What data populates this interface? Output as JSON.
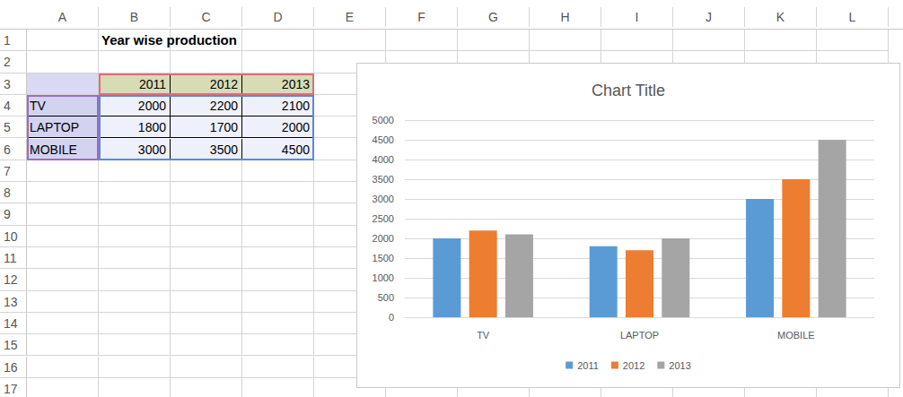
{
  "sheet": {
    "title": "Year wise production",
    "columns": [
      "A",
      "B",
      "C",
      "D",
      "E",
      "F",
      "G",
      "H",
      "I",
      "J",
      "K",
      "L"
    ],
    "rows": [
      1,
      2,
      3,
      4,
      5,
      6,
      7,
      8,
      9,
      10,
      11,
      12,
      13,
      14,
      15,
      16,
      17
    ]
  },
  "chart_data": {
    "type": "bar",
    "title": "Chart Title",
    "categories": [
      "TV",
      "LAPTOP",
      "MOBILE"
    ],
    "series": [
      {
        "name": "2011",
        "color": "#5b9bd5",
        "values": [
          2000,
          1800,
          3000
        ]
      },
      {
        "name": "2012",
        "color": "#ed7d31",
        "values": [
          2200,
          1700,
          3500
        ]
      },
      {
        "name": "2013",
        "color": "#a5a5a5",
        "values": [
          2100,
          2000,
          4500
        ]
      }
    ],
    "ylim": [
      0,
      5000
    ],
    "yticks": [
      0,
      500,
      1000,
      1500,
      2000,
      2500,
      3000,
      3500,
      4000,
      4500,
      5000
    ],
    "grid": true,
    "legend": "bottom"
  }
}
